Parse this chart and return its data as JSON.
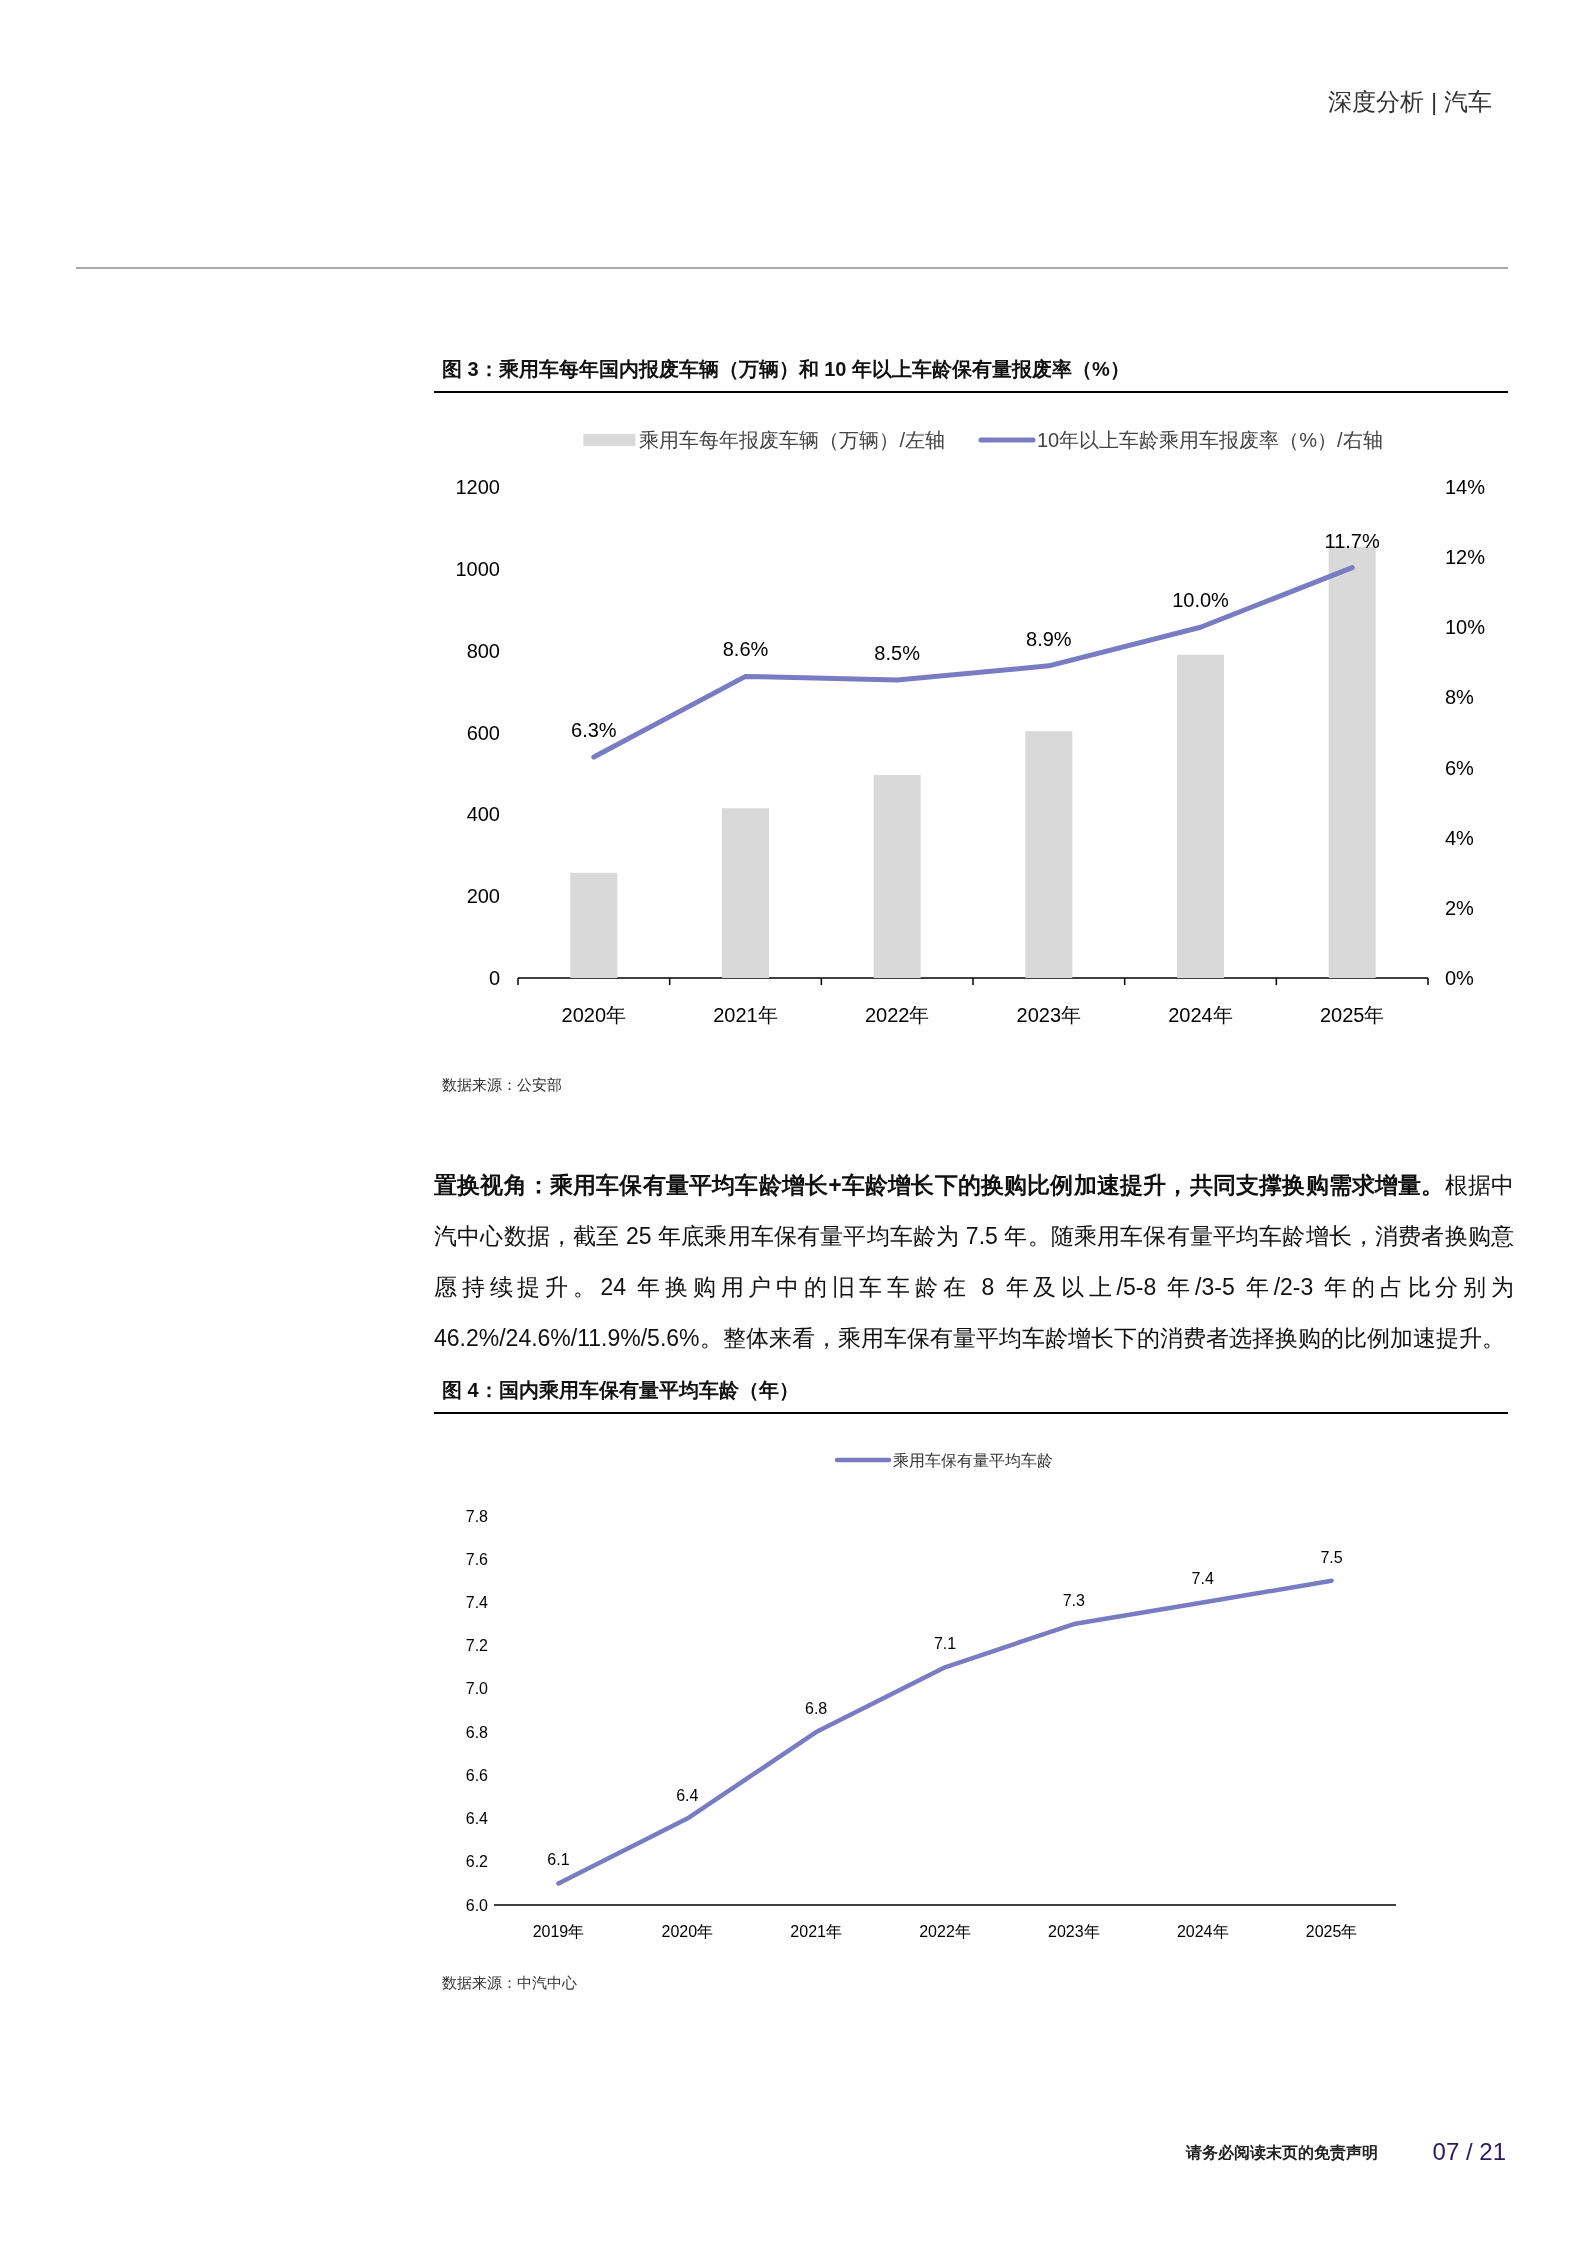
{
  "chart_data": [
    {
      "type": "bar",
      "title": "图 3：乘用车每年国内报废车辆（万辆）和 10 年以上车龄保有量报废率（%）",
      "annotations": [
        "深度分析 | 汽车",
        "数据来源：公安部"
      ],
      "categories": [
        "2020年",
        "2021年",
        "2022年",
        "2023年",
        "2024年",
        "2025年"
      ],
      "series": [
        {
          "name": "乘用车每年报废车辆（万辆）/左轴",
          "type": "bar",
          "color": "#d9d9d9",
          "values": [
            257,
            415,
            496,
            603,
            790,
            1054
          ]
        },
        {
          "name": "10年以上车龄乘用车报废率（%）/右轴",
          "type": "line",
          "axis": "y2",
          "color": "#7b7bc4",
          "values": [
            6.3,
            8.6,
            8.5,
            8.9,
            10.0,
            11.7
          ],
          "value_labels": [
            "6.3%",
            "8.6%",
            "8.5%",
            "8.9%",
            "10.0%",
            "11.7%"
          ]
        }
      ],
      "ylim": [
        0,
        1200
      ],
      "yticks": [
        0,
        200,
        400,
        600,
        800,
        1000,
        1200
      ],
      "y2lim": [
        0,
        14
      ],
      "y2ticks": [
        {
          "value": 0,
          "label": "0%"
        },
        {
          "value": 2,
          "label": "2%"
        },
        {
          "value": 4,
          "label": "4%"
        },
        {
          "value": 6,
          "label": "6%"
        },
        {
          "value": 8,
          "label": "8%"
        },
        {
          "value": 10,
          "label": "10%"
        },
        {
          "value": 12,
          "label": "12%"
        },
        {
          "value": 14,
          "label": "14%"
        }
      ],
      "legend": "top"
    },
    {
      "type": "other",
      "annotations": [
        "**置换视角：乘用车保有量平均车龄增长+车龄增长下的换购比例加速提升，共同支撑换购需求增量。**根据中汽中心数据，截至 25 年底乘用车保有量平均车龄为 7.5 年。随乘用车保有量平均车龄增长，消费者换购意愿持续提升。24 年换购用户中的旧车车龄在 8 年及以上/5-8 年/3-5 年/2-3 年的占比分别为 46.2%/24.6%/11.9%/5.6%。整体来看，乘用车保有量平均车龄增长下的消费者选择换购的比例加速提升。"
      ]
    },
    {
      "type": "line",
      "title": "图 4：国内乘用车保有量平均车龄（年）",
      "annotations": [
        "数据来源：中汽中心",
        "请务必阅读末页的免责声明",
        "07 / 21"
      ],
      "categories": [
        "2019年",
        "2020年",
        "2021年",
        "2022年",
        "2023年",
        "2024年",
        "2025年"
      ],
      "series": [
        {
          "name": "乘用车保有量平均车龄",
          "color": "#7b7bc4",
          "values": [
            6.1,
            6.4,
            6.8,
            7.1,
            7.3,
            7.4,
            7.5
          ]
        }
      ],
      "ylim": [
        6,
        7.8
      ],
      "yticks": [
        {
          "value": 6,
          "label": "6.0"
        },
        {
          "value": 6.2,
          "label": "6.2"
        },
        {
          "value": 6.4,
          "label": "6.4"
        },
        {
          "value": 6.6,
          "label": "6.6"
        },
        {
          "value": 6.8,
          "label": "6.8"
        },
        {
          "value": 7,
          "label": "7.0"
        },
        {
          "value": 7.2,
          "label": "7.2"
        },
        {
          "value": 7.4,
          "label": "7.4"
        },
        {
          "value": 7.6,
          "label": "7.6"
        },
        {
          "value": 7.8,
          "label": "7.8"
        }
      ],
      "data_labels": true,
      "legend": "top"
    }
  ]
}
